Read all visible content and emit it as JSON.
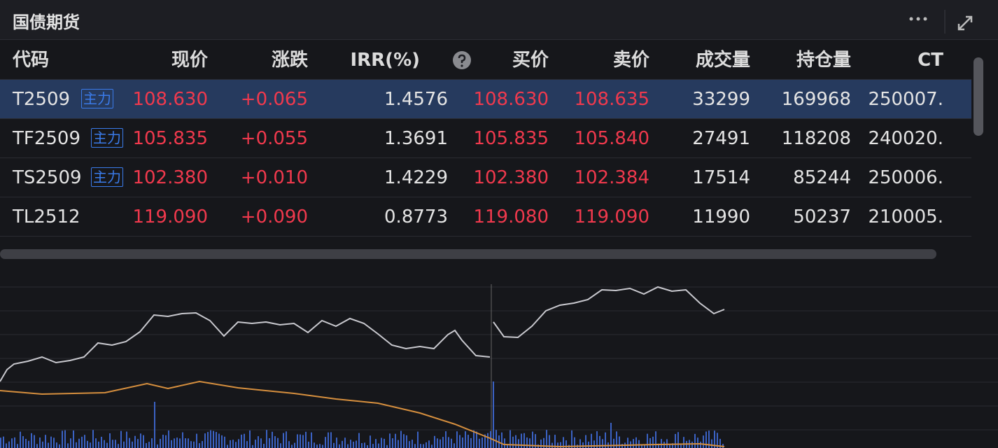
{
  "panel": {
    "title": "国债期货"
  },
  "table": {
    "columns": [
      "代码",
      "现价",
      "涨跌",
      "IRR(%)",
      "买价",
      "卖价",
      "成交量",
      "持仓量",
      "CT"
    ],
    "rows": [
      {
        "code": "T2509",
        "badge": "主力",
        "price": "108.630",
        "change": "+0.065",
        "irr": "1.4576",
        "bid": "108.630",
        "ask": "108.635",
        "volume": "33299",
        "open_interest": "169968",
        "ct": "250007."
      },
      {
        "code": "TF2509",
        "badge": "主力",
        "price": "105.835",
        "change": "+0.055",
        "irr": "1.3691",
        "bid": "105.835",
        "ask": "105.840",
        "volume": "27491",
        "open_interest": "118208",
        "ct": "240020."
      },
      {
        "code": "TS2509",
        "badge": "主力",
        "price": "102.380",
        "change": "+0.010",
        "irr": "1.4229",
        "bid": "102.380",
        "ask": "102.384",
        "volume": "17514",
        "open_interest": "85244",
        "ct": "250006."
      },
      {
        "code": "TL2512",
        "price": "119.090",
        "change": "+0.090",
        "irr": "0.8773",
        "bid": "119.080",
        "ask": "119.090",
        "volume": "11990",
        "open_interest": "50237",
        "ct": "210005."
      }
    ]
  }
}
